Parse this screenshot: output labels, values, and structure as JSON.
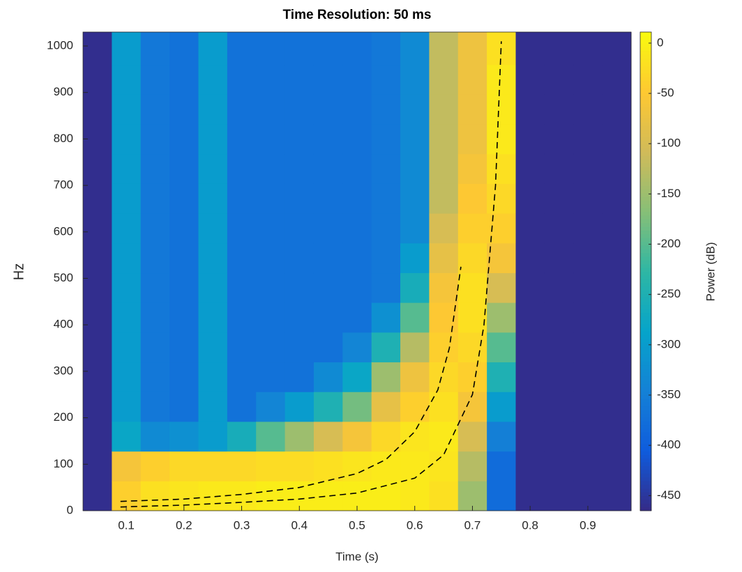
{
  "chart_data": {
    "type": "heatmap",
    "title": "Time Resolution: 50 ms",
    "x_label": "Time (s)",
    "y_label": "Hz",
    "colorbar_label": "Power (dB)",
    "x": [
      0.05,
      0.1,
      0.15,
      0.2,
      0.25,
      0.3,
      0.35,
      0.4,
      0.45,
      0.5,
      0.55,
      0.6,
      0.65,
      0.7,
      0.75,
      0.8,
      0.85,
      0.9,
      0.95
    ],
    "y": [
      32,
      96,
      160,
      224,
      288,
      352,
      416,
      480,
      544,
      608,
      672,
      736,
      800,
      864,
      928,
      992
    ],
    "z": [
      [
        -460,
        -460,
        -460,
        -460,
        -460,
        -460,
        -460,
        -460,
        -460,
        -460,
        -460,
        -460,
        -460,
        -460,
        -460,
        -460
      ],
      [
        -40,
        -60,
        -280,
        -300,
        -300,
        -300,
        -300,
        -300,
        -300,
        -300,
        -300,
        -300,
        -300,
        -300,
        -300,
        -300
      ],
      [
        -20,
        -40,
        -330,
        -360,
        -360,
        -360,
        -360,
        -360,
        -360,
        -360,
        -360,
        -360,
        -360,
        -360,
        -360,
        -360
      ],
      [
        -15,
        -30,
        -320,
        -370,
        -370,
        -370,
        -370,
        -370,
        -370,
        -370,
        -370,
        -370,
        -370,
        -370,
        -370,
        -370
      ],
      [
        -10,
        -30,
        -300,
        -300,
        -300,
        -300,
        -300,
        -300,
        -300,
        -300,
        -300,
        -300,
        -300,
        -300,
        -300,
        -300
      ],
      [
        -10,
        -30,
        -260,
        -370,
        -370,
        -370,
        -370,
        -370,
        -370,
        -370,
        -370,
        -370,
        -370,
        -370,
        -370,
        -370
      ],
      [
        -5,
        -25,
        -200,
        -340,
        -370,
        -370,
        -370,
        -370,
        -370,
        -370,
        -370,
        -370,
        -370,
        -370,
        -370,
        -370
      ],
      [
        -5,
        -25,
        -150,
        -300,
        -370,
        -370,
        -370,
        -370,
        -370,
        -370,
        -370,
        -370,
        -370,
        -370,
        -370,
        -370
      ],
      [
        -5,
        -20,
        -100,
        -250,
        -330,
        -370,
        -370,
        -370,
        -370,
        -370,
        -370,
        -370,
        -370,
        -370,
        -370,
        -370
      ],
      [
        -5,
        -15,
        -60,
        -180,
        -280,
        -340,
        -370,
        -370,
        -370,
        -370,
        -370,
        -370,
        -370,
        -370,
        -370,
        -370
      ],
      [
        -5,
        -10,
        -30,
        -80,
        -150,
        -250,
        -320,
        -360,
        -360,
        -360,
        -360,
        -360,
        -360,
        -360,
        -360,
        -360
      ],
      [
        -10,
        -10,
        -15,
        -40,
        -70,
        -130,
        -200,
        -260,
        -300,
        -330,
        -330,
        -330,
        -330,
        -330,
        -330,
        -330
      ],
      [
        -20,
        -15,
        -10,
        -20,
        -30,
        -40,
        -50,
        -60,
        -80,
        -100,
        -120,
        -120,
        -120,
        -120,
        -120,
        -120
      ],
      [
        -150,
        -130,
        -100,
        -60,
        -40,
        -30,
        -20,
        -20,
        -30,
        -40,
        -50,
        -60,
        -70,
        -70,
        -70,
        -70
      ],
      [
        -380,
        -380,
        -350,
        -300,
        -250,
        -200,
        -150,
        -100,
        -60,
        -40,
        -30,
        -20,
        -10,
        -10,
        -10,
        -20
      ],
      [
        -460,
        -460,
        -460,
        -460,
        -460,
        -460,
        -460,
        -460,
        -460,
        -460,
        -460,
        -460,
        -460,
        -460,
        -460,
        -460
      ],
      [
        -460,
        -460,
        -460,
        -460,
        -460,
        -460,
        -460,
        -460,
        -460,
        -460,
        -460,
        -460,
        -460,
        -460,
        -460,
        -460
      ],
      [
        -460,
        -460,
        -460,
        -460,
        -460,
        -460,
        -460,
        -460,
        -460,
        -460,
        -460,
        -460,
        -460,
        -460,
        -460,
        -460
      ],
      [
        -460,
        -460,
        -460,
        -460,
        -460,
        -460,
        -460,
        -460,
        -460,
        -460,
        -460,
        -460,
        -460,
        -460,
        -460,
        -460
      ]
    ],
    "xlim": [
      0.025,
      0.975
    ],
    "ylim": [
      0,
      1030
    ],
    "clim": [
      -465,
      11
    ],
    "xticks": [
      0.1,
      0.2,
      0.3,
      0.4,
      0.5,
      0.6,
      0.7,
      0.8,
      0.9
    ],
    "yticks": [
      0,
      100,
      200,
      300,
      400,
      500,
      600,
      700,
      800,
      900,
      1000
    ],
    "cticks": [
      0,
      -50,
      -100,
      -150,
      -200,
      -250,
      -300,
      -350,
      -400,
      -450
    ],
    "colormap": [
      "#352a87",
      "#0f5cdd",
      "#1481d6",
      "#06a4ca",
      "#2eb7a4",
      "#87bf77",
      "#d1bb59",
      "#fec832",
      "#f9fb0e"
    ],
    "lines": [
      {
        "color": "#000000",
        "x": [
          0.09,
          0.2,
          0.3,
          0.4,
          0.5,
          0.55,
          0.6,
          0.64,
          0.66,
          0.68
        ],
        "values": [
          20,
          25,
          35,
          50,
          80,
          110,
          170,
          260,
          350,
          525
        ]
      },
      {
        "color": "#000000",
        "x": [
          0.09,
          0.2,
          0.3,
          0.4,
          0.5,
          0.6,
          0.65,
          0.7,
          0.72,
          0.74,
          0.75
        ],
        "values": [
          8,
          12,
          18,
          25,
          38,
          70,
          120,
          250,
          400,
          700,
          1010
        ]
      }
    ]
  }
}
